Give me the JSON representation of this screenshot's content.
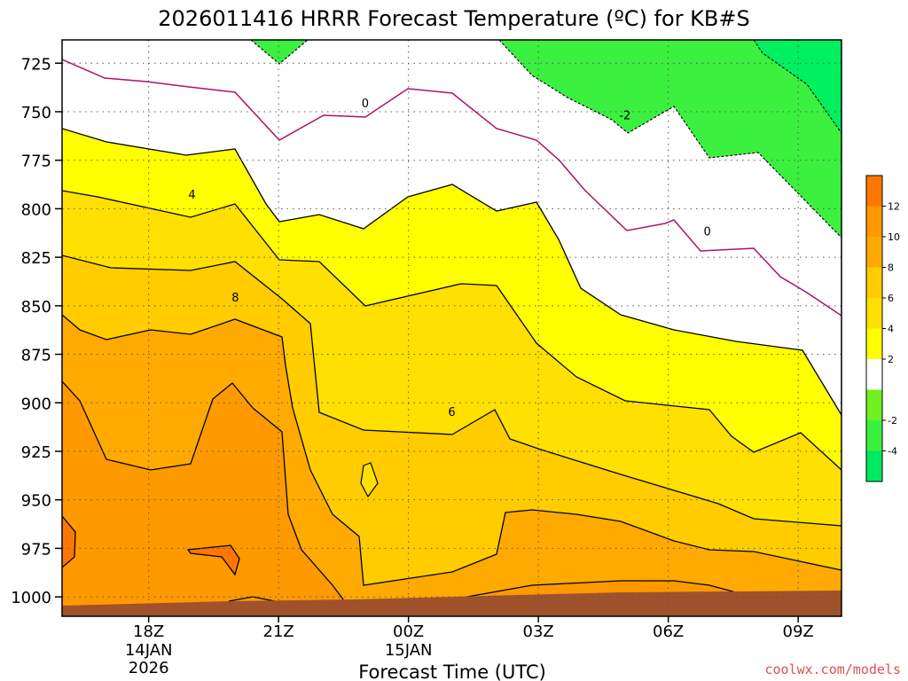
{
  "chart_data": {
    "type": "heatmap",
    "title": "2026011416 HRRR Forecast Temperature (ºC) for KB#S",
    "xlabel": "Forecast Time (UTC)",
    "ylabel": "",
    "x_ticks": [
      {
        "label": "18Z",
        "sub": [
          "14JAN",
          "2026"
        ],
        "hours": 2
      },
      {
        "label": "21Z",
        "sub": [],
        "hours": 5
      },
      {
        "label": "00Z",
        "sub": [
          "15JAN"
        ],
        "hours": 8
      },
      {
        "label": "03Z",
        "sub": [],
        "hours": 11
      },
      {
        "label": "06Z",
        "sub": [],
        "hours": 14
      },
      {
        "label": "09Z",
        "sub": [],
        "hours": 17
      }
    ],
    "xlim_hours": [
      0,
      18
    ],
    "y_ticks": [
      725,
      750,
      775,
      800,
      825,
      850,
      875,
      900,
      925,
      950,
      975,
      1000
    ],
    "ylim_hpa": [
      1010,
      713
    ],
    "color_scale": {
      "levels": [
        -6,
        -4,
        -2,
        0,
        2,
        4,
        6,
        8,
        10,
        12,
        14
      ],
      "labels": [
        "-4",
        "-2",
        "2",
        "4",
        "6",
        "8",
        "10",
        "12"
      ],
      "colors": [
        "#00e860",
        "#3cf040",
        "#70f020",
        "#ffffff",
        "#ffff00",
        "#ffe000",
        "#ffcc00",
        "#ffaa00",
        "#ff9900",
        "#ff7700"
      ]
    },
    "contour_labels": [
      {
        "text": "0",
        "hours": 7.0,
        "hpa": 746
      },
      {
        "text": "0",
        "hours": 14.9,
        "hpa": 812
      },
      {
        "text": "-2",
        "hours": 13.0,
        "hpa": 752
      },
      {
        "text": "4",
        "hours": 3.0,
        "hpa": 793
      },
      {
        "text": "8",
        "hours": 4.0,
        "hpa": 846
      },
      {
        "text": "6",
        "hours": 9.0,
        "hpa": 905
      }
    ],
    "colors": {
      "ground": "#a0522d",
      "freezing_line": "#b0106a",
      "contour": "#000000"
    }
  },
  "credit": "coolwx.com/models"
}
